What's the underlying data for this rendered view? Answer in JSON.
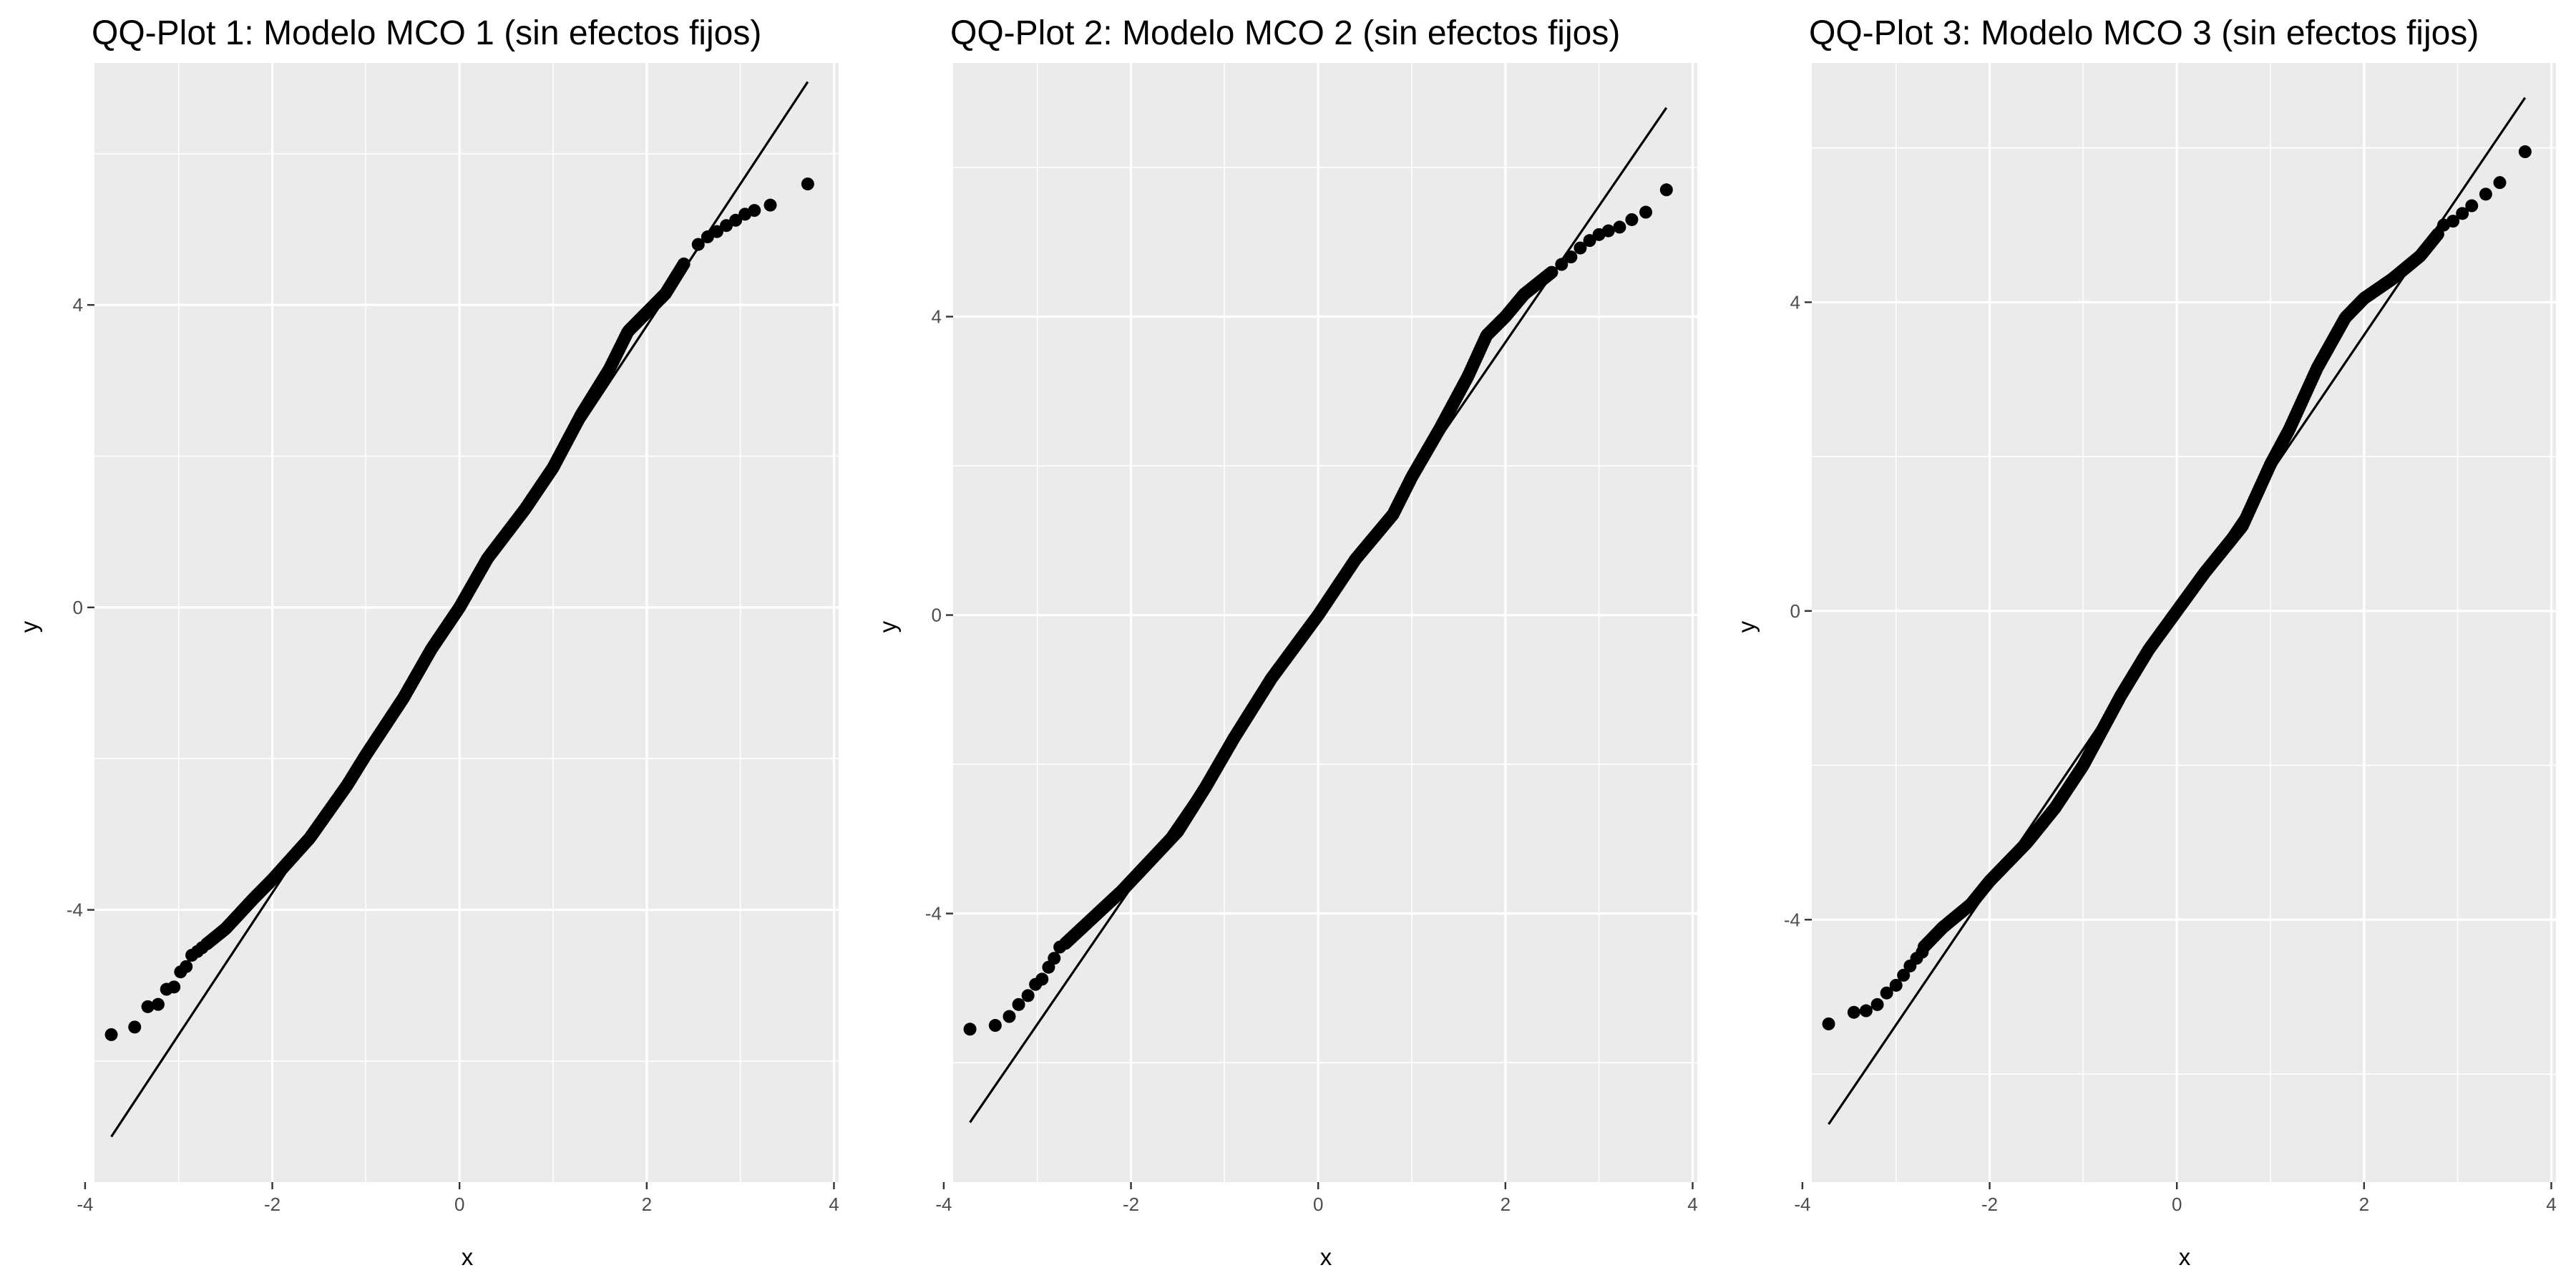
{
  "chart_data": [
    {
      "type": "scatter",
      "title": "QQ-Plot 1: Modelo MCO 1 (sin efectos fijos)",
      "xlabel": "x",
      "ylabel": "y",
      "xlim": [
        -3.9,
        4.05
      ],
      "ylim": [
        -7.6,
        7.2
      ],
      "xticks": [
        -4,
        -2,
        0,
        2,
        4
      ],
      "yticks": [
        -4,
        0,
        4
      ],
      "grid": true,
      "reference_line": {
        "from": [
          -3.72,
          -7.0
        ],
        "to": [
          3.72,
          6.95
        ]
      },
      "tail_points": [
        [
          -3.72,
          -5.65
        ],
        [
          -3.47,
          -5.55
        ],
        [
          -3.33,
          -5.28
        ],
        [
          -3.22,
          -5.25
        ],
        [
          -3.13,
          -5.05
        ],
        [
          -3.05,
          -5.02
        ],
        [
          -2.98,
          -4.82
        ],
        [
          -2.92,
          -4.75
        ],
        [
          -2.86,
          -4.6
        ],
        [
          -2.8,
          -4.55
        ],
        [
          -2.75,
          -4.5
        ],
        [
          2.55,
          4.8
        ],
        [
          2.65,
          4.9
        ],
        [
          2.75,
          4.97
        ],
        [
          2.85,
          5.05
        ],
        [
          2.95,
          5.12
        ],
        [
          3.05,
          5.2
        ],
        [
          3.15,
          5.25
        ],
        [
          3.32,
          5.32
        ],
        [
          3.72,
          5.6
        ]
      ],
      "body_curve": [
        [
          -2.7,
          -4.45
        ],
        [
          -2.5,
          -4.25
        ],
        [
          -2.2,
          -3.85
        ],
        [
          -2.0,
          -3.6
        ],
        [
          -1.6,
          -3.05
        ],
        [
          -1.2,
          -2.35
        ],
        [
          -1.0,
          -1.95
        ],
        [
          -0.6,
          -1.2
        ],
        [
          -0.3,
          -0.55
        ],
        [
          0.0,
          0.0
        ],
        [
          0.3,
          0.65
        ],
        [
          0.7,
          1.3
        ],
        [
          1.0,
          1.85
        ],
        [
          1.3,
          2.55
        ],
        [
          1.6,
          3.15
        ],
        [
          1.8,
          3.65
        ],
        [
          2.0,
          3.9
        ],
        [
          2.2,
          4.15
        ],
        [
          2.4,
          4.55
        ]
      ]
    },
    {
      "type": "scatter",
      "title": "QQ-Plot 2: Modelo MCO 2 (sin efectos fijos)",
      "xlabel": "x",
      "ylabel": "y",
      "xlim": [
        -3.9,
        4.05
      ],
      "ylim": [
        -7.6,
        7.4
      ],
      "xticks": [
        -4,
        -2,
        0,
        2,
        4
      ],
      "yticks": [
        -4,
        0,
        4
      ],
      "grid": true,
      "reference_line": {
        "from": [
          -3.72,
          -6.8
        ],
        "to": [
          3.72,
          6.8
        ]
      },
      "tail_points": [
        [
          -3.72,
          -5.55
        ],
        [
          -3.45,
          -5.5
        ],
        [
          -3.3,
          -5.38
        ],
        [
          -3.2,
          -5.22
        ],
        [
          -3.1,
          -5.1
        ],
        [
          -3.02,
          -4.95
        ],
        [
          -2.95,
          -4.88
        ],
        [
          -2.88,
          -4.72
        ],
        [
          -2.82,
          -4.6
        ],
        [
          -2.76,
          -4.45
        ],
        [
          2.6,
          4.7
        ],
        [
          2.7,
          4.8
        ],
        [
          2.8,
          4.92
        ],
        [
          2.9,
          5.02
        ],
        [
          3.0,
          5.1
        ],
        [
          3.1,
          5.15
        ],
        [
          3.22,
          5.2
        ],
        [
          3.35,
          5.3
        ],
        [
          3.5,
          5.4
        ],
        [
          3.72,
          5.7
        ]
      ],
      "body_curve": [
        [
          -2.7,
          -4.4
        ],
        [
          -2.4,
          -4.05
        ],
        [
          -2.1,
          -3.7
        ],
        [
          -1.8,
          -3.3
        ],
        [
          -1.5,
          -2.9
        ],
        [
          -1.2,
          -2.3
        ],
        [
          -0.9,
          -1.65
        ],
        [
          -0.5,
          -0.85
        ],
        [
          0.0,
          0.0
        ],
        [
          0.4,
          0.75
        ],
        [
          0.8,
          1.35
        ],
        [
          1.0,
          1.85
        ],
        [
          1.3,
          2.5
        ],
        [
          1.6,
          3.2
        ],
        [
          1.8,
          3.75
        ],
        [
          2.0,
          4.0
        ],
        [
          2.2,
          4.3
        ],
        [
          2.5,
          4.6
        ]
      ]
    },
    {
      "type": "scatter",
      "title": "QQ-Plot 3: Modelo MCO 3 (sin efectos fijos)",
      "xlabel": "x",
      "ylabel": "y",
      "xlim": [
        -3.9,
        4.05
      ],
      "ylim": [
        -7.4,
        7.1
      ],
      "xticks": [
        -4,
        -2,
        0,
        2,
        4
      ],
      "yticks": [
        -4,
        0,
        4
      ],
      "grid": true,
      "reference_line": {
        "from": [
          -3.72,
          -6.65
        ],
        "to": [
          3.72,
          6.65
        ]
      },
      "tail_points": [
        [
          -3.72,
          -5.35
        ],
        [
          -3.45,
          -5.2
        ],
        [
          -3.32,
          -5.18
        ],
        [
          -3.2,
          -5.1
        ],
        [
          -3.1,
          -4.95
        ],
        [
          -3.0,
          -4.85
        ],
        [
          -2.92,
          -4.72
        ],
        [
          -2.85,
          -4.6
        ],
        [
          -2.78,
          -4.5
        ],
        [
          -2.72,
          -4.42
        ],
        [
          2.85,
          5.0
        ],
        [
          2.95,
          5.05
        ],
        [
          3.05,
          5.15
        ],
        [
          3.15,
          5.25
        ],
        [
          3.3,
          5.4
        ],
        [
          3.45,
          5.55
        ],
        [
          3.72,
          5.95
        ]
      ],
      "body_curve": [
        [
          -2.7,
          -4.35
        ],
        [
          -2.5,
          -4.1
        ],
        [
          -2.2,
          -3.8
        ],
        [
          -2.0,
          -3.5
        ],
        [
          -1.6,
          -3.0
        ],
        [
          -1.3,
          -2.55
        ],
        [
          -1.0,
          -2.0
        ],
        [
          -0.6,
          -1.1
        ],
        [
          -0.3,
          -0.5
        ],
        [
          0.0,
          0.0
        ],
        [
          0.3,
          0.5
        ],
        [
          0.7,
          1.1
        ],
        [
          1.0,
          1.9
        ],
        [
          1.2,
          2.35
        ],
        [
          1.5,
          3.15
        ],
        [
          1.8,
          3.8
        ],
        [
          2.0,
          4.05
        ],
        [
          2.3,
          4.3
        ],
        [
          2.6,
          4.6
        ],
        [
          2.8,
          4.9
        ]
      ]
    }
  ]
}
